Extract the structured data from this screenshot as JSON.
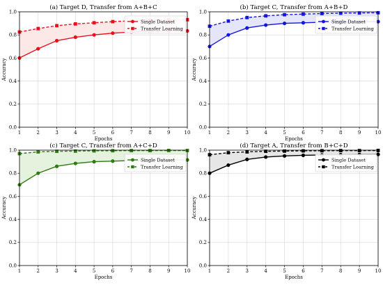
{
  "chart_data": [
    {
      "type": "line",
      "title": "(a) Target D, Transfer from A+B+C",
      "xlabel": "Epochs",
      "ylabel": "Accuracy",
      "xlim": [
        1,
        10
      ],
      "ylim": [
        0,
        1.0
      ],
      "x": [
        1,
        2,
        3,
        4,
        5,
        6,
        7,
        8,
        9,
        10
      ],
      "xticks": [
        "1",
        "2",
        "3",
        "4",
        "5",
        "6",
        "7",
        "8",
        "9",
        "10"
      ],
      "yticks": [
        "0.0",
        "0.2",
        "0.4",
        "0.6",
        "0.8",
        "1.0"
      ],
      "grid": true,
      "legend": "upper-right",
      "color": "#e8111b",
      "fill": "#fde8e8",
      "series": [
        {
          "name": "Single Dataset",
          "style": "solid-circle",
          "values": [
            0.6,
            0.68,
            0.75,
            0.78,
            0.8,
            0.815,
            0.825,
            0.83,
            0.835,
            0.835
          ]
        },
        {
          "name": "Transfer Learning",
          "style": "dashed-square",
          "values": [
            0.825,
            0.855,
            0.88,
            0.895,
            0.905,
            0.915,
            0.922,
            0.928,
            0.93,
            0.932
          ]
        }
      ]
    },
    {
      "type": "line",
      "title": "(b) Target C, Transfer from A+B+D",
      "xlabel": "Epochs",
      "ylabel": "Accuracy",
      "xlim": [
        1,
        10
      ],
      "ylim": [
        0,
        1.0
      ],
      "x": [
        1,
        2,
        3,
        4,
        5,
        6,
        7,
        8,
        9,
        10
      ],
      "xticks": [
        "1",
        "2",
        "3",
        "4",
        "5",
        "6",
        "7",
        "8",
        "9",
        "10"
      ],
      "yticks": [
        "0.0",
        "0.2",
        "0.4",
        "0.6",
        "0.8",
        "1.0"
      ],
      "grid": true,
      "legend": "upper-right",
      "color": "#1515e0",
      "fill": "#e6e6fb",
      "series": [
        {
          "name": "Single Dataset",
          "style": "solid-circle",
          "values": [
            0.7,
            0.8,
            0.86,
            0.885,
            0.9,
            0.905,
            0.91,
            0.912,
            0.914,
            0.915
          ]
        },
        {
          "name": "Transfer Learning",
          "style": "dashed-square",
          "values": [
            0.875,
            0.92,
            0.95,
            0.965,
            0.975,
            0.98,
            0.985,
            0.988,
            0.99,
            0.992
          ]
        }
      ]
    },
    {
      "type": "line",
      "title": "(c) Target C, Transfer from A+C+D",
      "xlabel": "Epochs",
      "ylabel": "Accuracy",
      "xlim": [
        1,
        10
      ],
      "ylim": [
        0,
        1.0
      ],
      "x": [
        1,
        2,
        3,
        4,
        5,
        6,
        7,
        8,
        9,
        10
      ],
      "xticks": [
        "1",
        "2",
        "3",
        "4",
        "5",
        "6",
        "7",
        "8",
        "9",
        "10"
      ],
      "yticks": [
        "0.0",
        "0.2",
        "0.4",
        "0.6",
        "0.8",
        "1.0"
      ],
      "grid": true,
      "legend": "upper-right",
      "color": "#2f7a12",
      "fill": "#e4f2de",
      "series": [
        {
          "name": "Single Dataset",
          "style": "solid-circle",
          "values": [
            0.7,
            0.8,
            0.86,
            0.885,
            0.9,
            0.905,
            0.91,
            0.912,
            0.914,
            0.915
          ]
        },
        {
          "name": "Transfer Learning",
          "style": "dashed-square",
          "values": [
            0.97,
            0.985,
            0.99,
            0.992,
            0.994,
            0.995,
            0.996,
            0.996,
            0.997,
            0.997
          ]
        }
      ]
    },
    {
      "type": "line",
      "title": "(d) Target A, Transfer from B+C+D",
      "xlabel": "Epochs",
      "ylabel": "Accuracy",
      "xlim": [
        1,
        10
      ],
      "ylim": [
        0,
        1.0
      ],
      "x": [
        1,
        2,
        3,
        4,
        5,
        6,
        7,
        8,
        9,
        10
      ],
      "xticks": [
        "1",
        "2",
        "3",
        "4",
        "5",
        "6",
        "7",
        "8",
        "9",
        "10"
      ],
      "yticks": [
        "0.0",
        "0.2",
        "0.4",
        "0.6",
        "0.8",
        "1.0"
      ],
      "grid": true,
      "legend": "upper-right",
      "color": "#000000",
      "fill": "#e6e6e6",
      "series": [
        {
          "name": "Single Dataset",
          "style": "solid-circle",
          "values": [
            0.8,
            0.87,
            0.92,
            0.94,
            0.95,
            0.955,
            0.958,
            0.96,
            0.962,
            0.963
          ]
        },
        {
          "name": "Transfer Learning",
          "style": "dashed-square",
          "values": [
            0.96,
            0.978,
            0.985,
            0.99,
            0.992,
            0.994,
            0.995,
            0.996,
            0.996,
            0.997
          ]
        }
      ]
    }
  ]
}
